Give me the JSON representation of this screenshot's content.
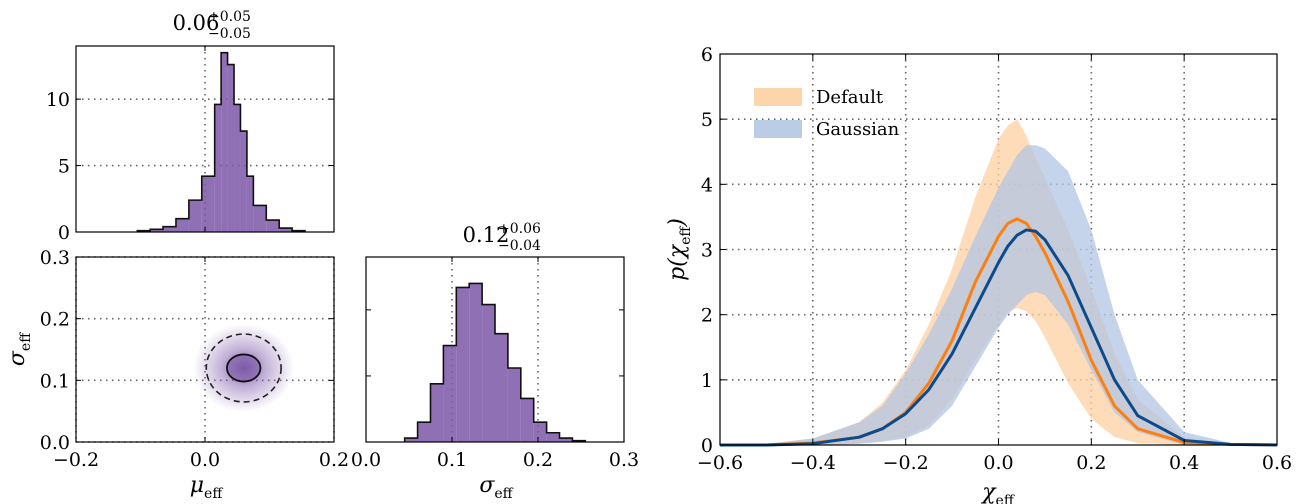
{
  "chart_data": [
    {
      "panel": "corner-mu-marginal",
      "type": "bar",
      "title": {
        "main": "0.06",
        "sup": "+0.05",
        "sub": "−0.05"
      },
      "xlim": [
        -0.2,
        0.2
      ],
      "ylim": [
        0,
        14
      ],
      "yticks": [
        {
          "value": 0,
          "label": "0"
        },
        {
          "value": 5,
          "label": "5"
        },
        {
          "value": 10,
          "label": "10"
        }
      ],
      "xgrid": [
        0.0
      ],
      "color": "#7b57a8",
      "bins": [
        {
          "x0": -0.105,
          "x1": -0.085,
          "value": 0.1
        },
        {
          "x0": -0.085,
          "x1": -0.065,
          "value": 0.2
        },
        {
          "x0": -0.065,
          "x1": -0.045,
          "value": 0.4
        },
        {
          "x0": -0.045,
          "x1": -0.025,
          "value": 1.0
        },
        {
          "x0": -0.025,
          "x1": -0.005,
          "value": 2.4
        },
        {
          "x0": -0.005,
          "x1": 0.015,
          "value": 4.2
        },
        {
          "x0": 0.015,
          "x1": 0.025,
          "value": 9.6
        },
        {
          "x0": 0.025,
          "x1": 0.035,
          "value": 13.5
        },
        {
          "x0": 0.035,
          "x1": 0.045,
          "value": 12.6
        },
        {
          "x0": 0.045,
          "x1": 0.055,
          "value": 9.6
        },
        {
          "x0": 0.055,
          "x1": 0.065,
          "value": 7.6
        },
        {
          "x0": 0.065,
          "x1": 0.075,
          "value": 4.2
        },
        {
          "x0": 0.075,
          "x1": 0.095,
          "value": 2.0
        },
        {
          "x0": 0.095,
          "x1": 0.115,
          "value": 0.9
        },
        {
          "x0": 0.115,
          "x1": 0.135,
          "value": 0.3
        },
        {
          "x0": 0.135,
          "x1": 0.155,
          "value": 0.1
        }
      ]
    },
    {
      "panel": "corner-2d",
      "type": "scatter",
      "xlim": [
        -0.2,
        0.2
      ],
      "ylim": [
        0.0,
        0.3
      ],
      "xlabel": {
        "main": "μ",
        "sub": "eff"
      },
      "ylabel": {
        "main": "σ",
        "sub": "eff"
      },
      "xticks": [
        {
          "value": -0.2,
          "label": "−0.2"
        },
        {
          "value": 0.0,
          "label": "0.0"
        },
        {
          "value": 0.2,
          "label": "0.2"
        }
      ],
      "yticks": [
        {
          "value": 0.0,
          "label": "0.0"
        },
        {
          "value": 0.1,
          "label": "0.1"
        },
        {
          "value": 0.2,
          "label": "0.2"
        },
        {
          "value": 0.3,
          "label": "0.3"
        }
      ],
      "center": {
        "x": 0.06,
        "y": 0.12
      },
      "contours": [
        {
          "level": "inner",
          "style": "solid",
          "rx": 0.026,
          "ry": 0.022
        },
        {
          "level": "outer",
          "style": "dashed",
          "rx": 0.058,
          "ry": 0.055
        }
      ],
      "color": "#7b57a8"
    },
    {
      "panel": "corner-sigma-marginal",
      "type": "bar",
      "title": {
        "main": "0.12",
        "sup": "+0.06",
        "sub": "−0.04"
      },
      "xlim": [
        0.0,
        0.3
      ],
      "ylim": [
        0,
        14
      ],
      "xlabel": {
        "main": "σ",
        "sub": "eff"
      },
      "xticks": [
        {
          "value": 0.0,
          "label": "0.0"
        },
        {
          "value": 0.1,
          "label": "0.1"
        },
        {
          "value": 0.2,
          "label": "0.2"
        },
        {
          "value": 0.3,
          "label": "0.3"
        }
      ],
      "color": "#7b57a8",
      "bins": [
        {
          "x0": 0.045,
          "x1": 0.06,
          "value": 0.3
        },
        {
          "x0": 0.06,
          "x1": 0.075,
          "value": 1.5
        },
        {
          "x0": 0.075,
          "x1": 0.09,
          "value": 4.4
        },
        {
          "x0": 0.09,
          "x1": 0.105,
          "value": 7.3
        },
        {
          "x0": 0.105,
          "x1": 0.12,
          "value": 11.7
        },
        {
          "x0": 0.12,
          "x1": 0.135,
          "value": 12.0
        },
        {
          "x0": 0.135,
          "x1": 0.15,
          "value": 10.4
        },
        {
          "x0": 0.15,
          "x1": 0.165,
          "value": 8.2
        },
        {
          "x0": 0.165,
          "x1": 0.18,
          "value": 5.6
        },
        {
          "x0": 0.18,
          "x1": 0.195,
          "value": 3.3
        },
        {
          "x0": 0.195,
          "x1": 0.21,
          "value": 1.5
        },
        {
          "x0": 0.21,
          "x1": 0.225,
          "value": 0.7
        },
        {
          "x0": 0.225,
          "x1": 0.24,
          "value": 0.3
        },
        {
          "x0": 0.24,
          "x1": 0.255,
          "value": 0.1
        }
      ]
    },
    {
      "panel": "p-chi-eff",
      "type": "line",
      "xlim": [
        -0.6,
        0.6
      ],
      "ylim": [
        0,
        6
      ],
      "xlabel": {
        "main": "χ",
        "sub": "eff"
      },
      "ylabel": {
        "main": "p(χ",
        "sub": "eff",
        "close": ")"
      },
      "xticks": [
        {
          "value": -0.6,
          "label": "−0.6"
        },
        {
          "value": -0.4,
          "label": "−0.4"
        },
        {
          "value": -0.2,
          "label": "−0.2"
        },
        {
          "value": 0.0,
          "label": "0.0"
        },
        {
          "value": 0.2,
          "label": "0.2"
        },
        {
          "value": 0.4,
          "label": "0.4"
        },
        {
          "value": 0.6,
          "label": "0.6"
        }
      ],
      "yticks": [
        {
          "value": 0,
          "label": "0"
        },
        {
          "value": 1,
          "label": "1"
        },
        {
          "value": 2,
          "label": "2"
        },
        {
          "value": 3,
          "label": "3"
        },
        {
          "value": 4,
          "label": "4"
        },
        {
          "value": 5,
          "label": "5"
        },
        {
          "value": 6,
          "label": "6"
        }
      ],
      "grid": true,
      "legend_position": "upper-left",
      "series": [
        {
          "name": "Default",
          "color": "#ff7f0e",
          "band_color": "#fdd0a2",
          "x": [
            -0.6,
            -0.5,
            -0.4,
            -0.3,
            -0.25,
            -0.2,
            -0.15,
            -0.1,
            -0.05,
            0.0,
            0.02,
            0.04,
            0.06,
            0.08,
            0.1,
            0.15,
            0.2,
            0.25,
            0.3,
            0.4,
            0.5,
            0.6
          ],
          "median": [
            0.0,
            0.0,
            0.03,
            0.12,
            0.25,
            0.5,
            0.95,
            1.6,
            2.5,
            3.2,
            3.4,
            3.47,
            3.4,
            3.2,
            2.95,
            2.2,
            1.3,
            0.6,
            0.25,
            0.04,
            0.01,
            0.0
          ],
          "lower": [
            0.0,
            0.0,
            0.0,
            0.02,
            0.06,
            0.12,
            0.3,
            0.7,
            1.3,
            1.85,
            2.05,
            2.1,
            2.05,
            1.9,
            1.65,
            0.95,
            0.4,
            0.12,
            0.03,
            0.0,
            0.0,
            0.0
          ],
          "upper": [
            0.0,
            0.02,
            0.1,
            0.35,
            0.65,
            1.15,
            1.85,
            2.7,
            3.8,
            4.7,
            4.9,
            5.0,
            4.75,
            4.4,
            4.1,
            3.3,
            2.4,
            1.4,
            0.7,
            0.12,
            0.02,
            0.0
          ]
        },
        {
          "name": "Gaussian",
          "color": "#0b4a8b",
          "band_color": "#b2c6e3",
          "x": [
            -0.6,
            -0.5,
            -0.4,
            -0.3,
            -0.25,
            -0.2,
            -0.15,
            -0.1,
            -0.05,
            0.0,
            0.02,
            0.04,
            0.06,
            0.08,
            0.1,
            0.15,
            0.2,
            0.25,
            0.3,
            0.4,
            0.5,
            0.6
          ],
          "median": [
            0.0,
            0.0,
            0.02,
            0.12,
            0.25,
            0.48,
            0.85,
            1.4,
            2.1,
            2.8,
            3.05,
            3.22,
            3.3,
            3.28,
            3.15,
            2.6,
            1.8,
            1.0,
            0.45,
            0.07,
            0.01,
            0.0
          ],
          "lower": [
            0.0,
            0.0,
            0.0,
            0.02,
            0.05,
            0.1,
            0.25,
            0.6,
            1.2,
            1.8,
            2.0,
            2.15,
            2.3,
            2.35,
            2.3,
            1.85,
            1.15,
            0.5,
            0.2,
            0.0,
            0.0,
            0.0
          ],
          "upper": [
            0.0,
            0.02,
            0.1,
            0.35,
            0.6,
            1.1,
            1.7,
            2.4,
            3.2,
            3.95,
            4.2,
            4.45,
            4.6,
            4.6,
            4.55,
            4.2,
            3.3,
            2.0,
            1.0,
            0.2,
            0.03,
            0.0
          ]
        }
      ]
    }
  ]
}
